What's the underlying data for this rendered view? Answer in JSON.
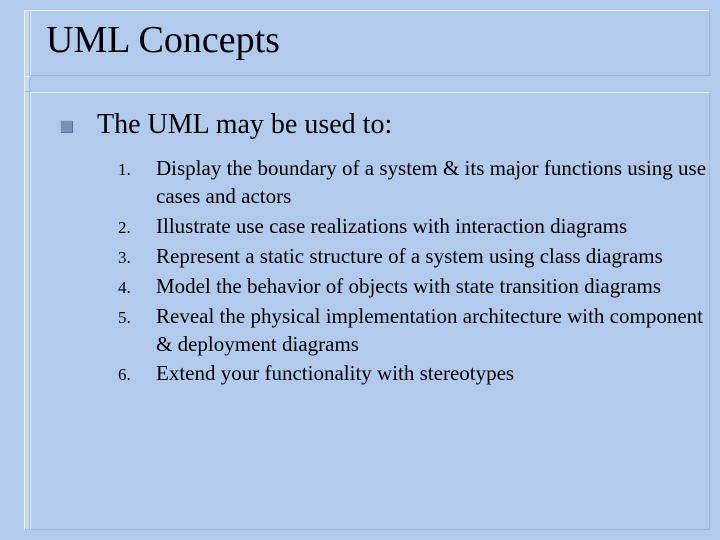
{
  "slide": {
    "title": "UML Concepts",
    "intro": "The UML may be used to:",
    "items": [
      {
        "num": "1.",
        "text": "Display the boundary of a system & its major functions using use cases and actors"
      },
      {
        "num": "2.",
        "text": "Illustrate use case realizations with interaction diagrams"
      },
      {
        "num": "3.",
        "text": "Represent a static structure of a system using class diagrams"
      },
      {
        "num": "4.",
        "text": "Model the behavior of objects with state transition diagrams"
      },
      {
        "num": "5.",
        "text": "Reveal the physical implementation architecture with component & deployment diagrams"
      },
      {
        "num": "6.",
        "text": "Extend your functionality with stereotypes"
      }
    ],
    "colors": {
      "background": "#b2cbed",
      "frame_light": "#e8f0f9",
      "frame_dark": "#9eb8d8",
      "bullet": "#7893b7",
      "text": "#000000"
    },
    "typography": {
      "title_fontsize": 38,
      "intro_fontsize": 28,
      "item_fontsize": 21,
      "num_fontsize": 17,
      "family": "Times New Roman"
    }
  }
}
